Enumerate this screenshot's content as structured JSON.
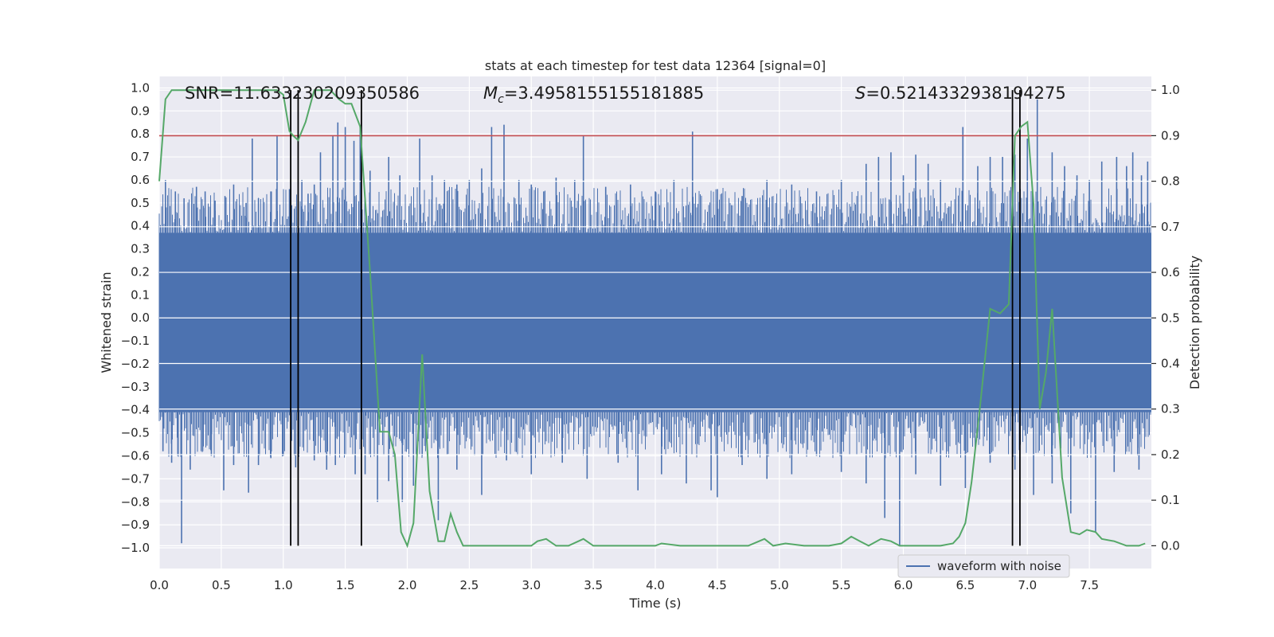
{
  "chart_data": {
    "type": "line",
    "title": "stats at each timestep for test data 12364 [signal=0]",
    "xlabel": "Time (s)",
    "ylabel_left": "Whitened strain",
    "ylabel_right": "Detection probability",
    "xlim": [
      0.0,
      8.0
    ],
    "ylim_left": [
      -1.09,
      1.05
    ],
    "ylim_right": [
      -0.05,
      1.03
    ],
    "xticks": [
      0.0,
      0.5,
      1.0,
      1.5,
      2.0,
      2.5,
      3.0,
      3.5,
      4.0,
      4.5,
      5.0,
      5.5,
      6.0,
      6.5,
      7.0,
      7.5
    ],
    "xtick_labels": [
      "0.0",
      "0.5",
      "1.0",
      "1.5",
      "2.0",
      "2.5",
      "3.0",
      "3.5",
      "4.0",
      "4.5",
      "5.0",
      "5.5",
      "6.0",
      "6.5",
      "7.0",
      "7.5"
    ],
    "yticks_left": [
      1.0,
      0.9,
      0.8,
      0.7,
      0.6,
      0.5,
      0.4,
      0.3,
      0.2,
      0.1,
      0.0,
      -0.1,
      -0.2,
      -0.3,
      -0.4,
      -0.5,
      -0.6,
      -0.7,
      -0.8,
      -0.9,
      -1.0
    ],
    "ytick_labels_left": [
      "1.0",
      "0.9",
      "0.8",
      "0.7",
      "0.6",
      "0.5",
      "0.4",
      "0.3",
      "0.2",
      "0.1",
      "0.0",
      "−0.1",
      "−0.2",
      "−0.3",
      "−0.4",
      "−0.5",
      "−0.6",
      "−0.7",
      "−0.8",
      "−0.9",
      "−1.0"
    ],
    "yticks_right": [
      1.0,
      0.9,
      0.8,
      0.7,
      0.6,
      0.5,
      0.4,
      0.3,
      0.2,
      0.1,
      0.0
    ],
    "ytick_labels_right": [
      "1.0",
      "0.9",
      "0.8",
      "0.7",
      "0.6",
      "0.5",
      "0.4",
      "0.3",
      "0.2",
      "0.1",
      "0.0"
    ],
    "waveform": {
      "name": "waveform with noise",
      "color": "#4c72b0",
      "band": [
        -0.41,
        0.37
      ],
      "spikes_up": [
        [
          0.05,
          0.6
        ],
        [
          0.13,
          0.55
        ],
        [
          0.2,
          0.52
        ],
        [
          0.3,
          0.57
        ],
        [
          0.37,
          0.55
        ],
        [
          0.45,
          0.51
        ],
        [
          0.53,
          0.53
        ],
        [
          0.6,
          0.58
        ],
        [
          0.7,
          0.5
        ],
        [
          0.75,
          0.78
        ],
        [
          0.8,
          0.52
        ],
        [
          0.9,
          0.55
        ],
        [
          0.95,
          0.79
        ],
        [
          1.05,
          0.56
        ],
        [
          1.15,
          0.6
        ],
        [
          1.2,
          0.54
        ],
        [
          1.25,
          0.58
        ],
        [
          1.3,
          0.72
        ],
        [
          1.4,
          0.79
        ],
        [
          1.44,
          0.85
        ],
        [
          1.5,
          0.83
        ],
        [
          1.57,
          0.77
        ],
        [
          1.62,
          0.83
        ],
        [
          1.7,
          0.64
        ],
        [
          1.85,
          0.7
        ],
        [
          1.94,
          0.62
        ],
        [
          2.1,
          0.78
        ],
        [
          2.2,
          0.62
        ],
        [
          2.3,
          0.6
        ],
        [
          2.4,
          0.58
        ],
        [
          2.5,
          0.6
        ],
        [
          2.6,
          0.65
        ],
        [
          2.68,
          0.83
        ],
        [
          2.78,
          0.84
        ],
        [
          2.9,
          0.6
        ],
        [
          3.0,
          0.58
        ],
        [
          3.1,
          0.55
        ],
        [
          3.2,
          0.61
        ],
        [
          3.35,
          0.6
        ],
        [
          3.42,
          0.79
        ],
        [
          3.6,
          0.57
        ],
        [
          3.8,
          0.58
        ],
        [
          4.0,
          0.55
        ],
        [
          4.15,
          0.6
        ],
        [
          4.3,
          0.81
        ],
        [
          4.5,
          0.56
        ],
        [
          4.7,
          0.53
        ],
        [
          4.9,
          0.6
        ],
        [
          5.1,
          0.58
        ],
        [
          5.3,
          0.55
        ],
        [
          5.5,
          0.6
        ],
        [
          5.7,
          0.67
        ],
        [
          5.8,
          0.7
        ],
        [
          5.9,
          0.72
        ],
        [
          6.0,
          0.62
        ],
        [
          6.1,
          0.71
        ],
        [
          6.2,
          0.67
        ],
        [
          6.3,
          0.6
        ],
        [
          6.48,
          0.83
        ],
        [
          6.6,
          0.66
        ],
        [
          6.7,
          0.7
        ],
        [
          6.8,
          0.7
        ],
        [
          6.9,
          0.71
        ],
        [
          7.0,
          0.78
        ],
        [
          7.08,
          0.95
        ],
        [
          7.2,
          0.72
        ],
        [
          7.3,
          0.66
        ],
        [
          7.4,
          0.62
        ],
        [
          7.5,
          0.6
        ],
        [
          7.6,
          0.68
        ],
        [
          7.72,
          0.7
        ],
        [
          7.8,
          0.66
        ],
        [
          7.85,
          0.72
        ],
        [
          7.92,
          0.62
        ],
        [
          7.97,
          0.68
        ]
      ],
      "spikes_down": [
        [
          0.03,
          -0.58
        ],
        [
          0.1,
          -0.63
        ],
        [
          0.15,
          -0.6
        ],
        [
          0.18,
          -0.98
        ],
        [
          0.25,
          -0.66
        ],
        [
          0.35,
          -0.58
        ],
        [
          0.42,
          -0.6
        ],
        [
          0.52,
          -0.75
        ],
        [
          0.6,
          -0.64
        ],
        [
          0.72,
          -0.76
        ],
        [
          0.8,
          -0.64
        ],
        [
          0.9,
          -0.61
        ],
        [
          1.0,
          -0.6
        ],
        [
          1.1,
          -0.65
        ],
        [
          1.25,
          -0.62
        ],
        [
          1.35,
          -0.66
        ],
        [
          1.42,
          -0.64
        ],
        [
          1.58,
          -0.68
        ],
        [
          1.66,
          -0.68
        ],
        [
          1.76,
          -0.8
        ],
        [
          1.85,
          -0.71
        ],
        [
          1.96,
          -0.8
        ],
        [
          2.05,
          -0.73
        ],
        [
          2.12,
          -0.6
        ],
        [
          2.25,
          -0.88
        ],
        [
          2.4,
          -0.66
        ],
        [
          2.6,
          -0.77
        ],
        [
          2.8,
          -0.62
        ],
        [
          3.0,
          -0.68
        ],
        [
          3.25,
          -0.63
        ],
        [
          3.45,
          -0.7
        ],
        [
          3.7,
          -0.63
        ],
        [
          3.86,
          -0.75
        ],
        [
          4.05,
          -0.68
        ],
        [
          4.25,
          -0.72
        ],
        [
          4.45,
          -0.75
        ],
        [
          4.5,
          -0.78
        ],
        [
          4.7,
          -0.64
        ],
        [
          4.9,
          -0.7
        ],
        [
          5.1,
          -0.68
        ],
        [
          5.3,
          -0.6
        ],
        [
          5.5,
          -0.67
        ],
        [
          5.7,
          -0.72
        ],
        [
          5.85,
          -0.87
        ],
        [
          5.97,
          -0.99
        ],
        [
          6.1,
          -0.68
        ],
        [
          6.3,
          -0.73
        ],
        [
          6.5,
          -0.74
        ],
        [
          6.7,
          -0.63
        ],
        [
          6.9,
          -0.66
        ],
        [
          7.05,
          -0.77
        ],
        [
          7.2,
          -0.72
        ],
        [
          7.35,
          -0.85
        ],
        [
          7.55,
          -0.93
        ],
        [
          7.7,
          -0.67
        ],
        [
          7.9,
          -0.66
        ]
      ]
    },
    "probability": {
      "name": "detection probability",
      "color": "#55a868",
      "x": [
        0.0,
        0.05,
        0.1,
        0.2,
        0.4,
        0.6,
        0.8,
        0.95,
        1.0,
        1.05,
        1.08,
        1.12,
        1.18,
        1.25,
        1.3,
        1.38,
        1.45,
        1.5,
        1.55,
        1.62,
        1.7,
        1.78,
        1.85,
        1.9,
        1.95,
        2.0,
        2.05,
        2.12,
        2.18,
        2.25,
        2.3,
        2.35,
        2.4,
        2.45,
        2.5,
        2.6,
        2.8,
        3.0,
        3.05,
        3.12,
        3.2,
        3.3,
        3.42,
        3.5,
        3.7,
        4.0,
        4.05,
        4.2,
        4.5,
        4.75,
        4.88,
        4.95,
        5.05,
        5.2,
        5.4,
        5.5,
        5.58,
        5.65,
        5.72,
        5.82,
        5.9,
        5.97,
        6.1,
        6.3,
        6.4,
        6.45,
        6.5,
        6.55,
        6.62,
        6.7,
        6.78,
        6.85,
        6.9,
        6.95,
        7.0,
        7.05,
        7.1,
        7.15,
        7.2,
        7.28,
        7.35,
        7.42,
        7.48,
        7.55,
        7.6,
        7.7,
        7.8,
        7.9,
        7.95
      ],
      "y": [
        0.8,
        0.98,
        1.0,
        1.0,
        1.0,
        1.0,
        1.0,
        1.0,
        0.99,
        0.91,
        0.9,
        0.89,
        0.93,
        1.0,
        1.0,
        1.0,
        0.98,
        0.97,
        0.97,
        0.92,
        0.6,
        0.25,
        0.25,
        0.2,
        0.03,
        0.0,
        0.05,
        0.42,
        0.12,
        0.01,
        0.01,
        0.07,
        0.03,
        0.0,
        0.0,
        0.0,
        0.0,
        0.0,
        0.01,
        0.015,
        0.0,
        0.0,
        0.015,
        0.0,
        0.0,
        0.0,
        0.005,
        0.0,
        0.0,
        0.0,
        0.015,
        0.0,
        0.005,
        0.0,
        0.0,
        0.005,
        0.02,
        0.01,
        0.0,
        0.015,
        0.01,
        0.0,
        0.0,
        0.0,
        0.005,
        0.02,
        0.05,
        0.14,
        0.31,
        0.52,
        0.51,
        0.53,
        0.9,
        0.92,
        0.93,
        0.75,
        0.3,
        0.38,
        0.52,
        0.15,
        0.03,
        0.025,
        0.035,
        0.03,
        0.015,
        0.01,
        0.0,
        0.0,
        0.005
      ]
    },
    "threshold": {
      "value": 0.9,
      "color": "#c44e52"
    },
    "detection_lines": {
      "x": [
        1.06,
        1.12,
        1.63,
        6.88,
        6.94
      ],
      "color": "#000000"
    },
    "annotations": {
      "snr": "SNR=11.633230209350586",
      "mc_symbol": "M",
      "mc_sub": "c",
      "mc_value": "=3.4958155155181885",
      "s_symbol": "S",
      "s_value": "=0.5214332938194275"
    },
    "legend": {
      "label": "waveform with noise",
      "placement": "lower-right"
    },
    "grid": true,
    "facecolor": "#eaeaf2"
  }
}
